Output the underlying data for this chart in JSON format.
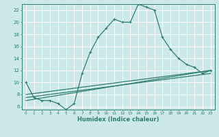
{
  "title": "",
  "xlabel": "Humidex (Indice chaleur)",
  "bg_color": "#cce8e8",
  "grid_color": "#ffffff",
  "line_color": "#2e7d6e",
  "xlim": [
    -0.5,
    23.5
  ],
  "ylim": [
    5.5,
    23.0
  ],
  "xticks": [
    0,
    1,
    2,
    3,
    4,
    5,
    6,
    7,
    8,
    9,
    10,
    11,
    12,
    13,
    14,
    15,
    16,
    17,
    18,
    19,
    20,
    21,
    22,
    23
  ],
  "yticks": [
    6,
    8,
    10,
    12,
    14,
    16,
    18,
    20,
    22
  ],
  "series_main": {
    "x": [
      0,
      1,
      2,
      3,
      4,
      5,
      6,
      7,
      8,
      9,
      10,
      11,
      12,
      13,
      14,
      15,
      16,
      17,
      18,
      19,
      20,
      21,
      22,
      23
    ],
    "y": [
      10,
      7.5,
      7,
      7,
      6.5,
      5.5,
      6.5,
      11.5,
      15,
      17.5,
      19,
      20.5,
      20,
      20,
      23,
      22.5,
      22,
      17.5,
      15.5,
      14,
      13,
      12.5,
      11.5,
      12
    ]
  },
  "series_lines": [
    {
      "x": [
        0,
        23
      ],
      "y": [
        8.0,
        12.0
      ]
    },
    {
      "x": [
        0,
        23
      ],
      "y": [
        7.5,
        11.5
      ]
    },
    {
      "x": [
        0,
        23
      ],
      "y": [
        7.0,
        12.0
      ]
    }
  ]
}
